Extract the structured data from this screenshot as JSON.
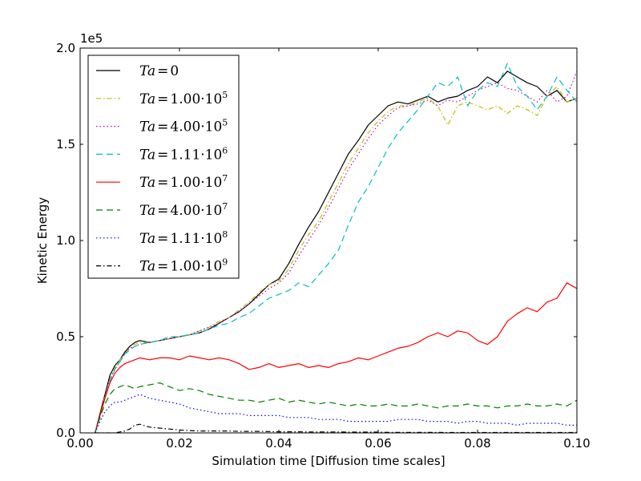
{
  "chart_data": {
    "type": "line",
    "xlabel": "Simulation time [Diffusion time scales]",
    "ylabel": "Kinetic Energy",
    "y_offset_text": "1e5",
    "xlim": [
      0.0,
      0.1
    ],
    "ylim": [
      0.0,
      2.0
    ],
    "xticks": [
      "0.00",
      "0.02",
      "0.04",
      "0.06",
      "0.08",
      "0.10"
    ],
    "yticks": [
      "0.0",
      "0.5",
      "1.0",
      "1.5",
      "2.0"
    ],
    "grid": false,
    "legend_position": "upper-left",
    "series": [
      {
        "name": "Ta = 0",
        "legend": {
          "base": "Ta",
          "eq": "=",
          "coef": "0",
          "sup": ""
        },
        "color": "#000000",
        "dash": "none",
        "x": [
          0.003,
          0.004,
          0.005,
          0.006,
          0.007,
          0.008,
          0.009,
          0.01,
          0.011,
          0.012,
          0.014,
          0.016,
          0.018,
          0.02,
          0.022,
          0.024,
          0.026,
          0.028,
          0.03,
          0.032,
          0.034,
          0.036,
          0.038,
          0.04,
          0.042,
          0.044,
          0.046,
          0.048,
          0.05,
          0.052,
          0.054,
          0.056,
          0.058,
          0.06,
          0.062,
          0.064,
          0.066,
          0.068,
          0.07,
          0.072,
          0.074,
          0.076,
          0.078,
          0.08,
          0.082,
          0.084,
          0.086,
          0.088,
          0.09,
          0.092,
          0.094,
          0.096,
          0.098,
          0.1
        ],
        "y": [
          0.0,
          0.1,
          0.2,
          0.3,
          0.35,
          0.38,
          0.42,
          0.45,
          0.47,
          0.48,
          0.47,
          0.48,
          0.49,
          0.5,
          0.51,
          0.52,
          0.54,
          0.57,
          0.6,
          0.63,
          0.67,
          0.72,
          0.77,
          0.8,
          0.88,
          0.98,
          1.07,
          1.15,
          1.25,
          1.35,
          1.45,
          1.52,
          1.6,
          1.65,
          1.7,
          1.72,
          1.71,
          1.73,
          1.75,
          1.72,
          1.74,
          1.75,
          1.78,
          1.8,
          1.85,
          1.82,
          1.88,
          1.85,
          1.82,
          1.8,
          1.75,
          1.78,
          1.72,
          1.74
        ]
      },
      {
        "name": "Ta = 1.00·10^5",
        "legend": {
          "base": "Ta",
          "eq": "=",
          "coef": "1.00·10",
          "sup": "5"
        },
        "color": "#bfbf00",
        "dash": "6 3 1.5 3",
        "x": [
          0.003,
          0.004,
          0.005,
          0.006,
          0.007,
          0.008,
          0.009,
          0.01,
          0.011,
          0.012,
          0.014,
          0.016,
          0.018,
          0.02,
          0.022,
          0.024,
          0.026,
          0.028,
          0.03,
          0.032,
          0.034,
          0.036,
          0.038,
          0.04,
          0.042,
          0.044,
          0.046,
          0.048,
          0.05,
          0.052,
          0.054,
          0.056,
          0.058,
          0.06,
          0.062,
          0.064,
          0.066,
          0.068,
          0.07,
          0.072,
          0.074,
          0.076,
          0.078,
          0.08,
          0.082,
          0.084,
          0.086,
          0.088,
          0.09,
          0.092,
          0.094,
          0.096,
          0.098,
          0.1
        ],
        "y": [
          0.0,
          0.09,
          0.19,
          0.28,
          0.34,
          0.38,
          0.41,
          0.44,
          0.46,
          0.47,
          0.47,
          0.48,
          0.49,
          0.5,
          0.51,
          0.53,
          0.55,
          0.58,
          0.6,
          0.64,
          0.68,
          0.73,
          0.77,
          0.79,
          0.85,
          0.95,
          1.03,
          1.1,
          1.2,
          1.3,
          1.4,
          1.48,
          1.56,
          1.62,
          1.67,
          1.7,
          1.7,
          1.72,
          1.74,
          1.7,
          1.6,
          1.7,
          1.72,
          1.7,
          1.68,
          1.7,
          1.66,
          1.7,
          1.68,
          1.65,
          1.75,
          1.8,
          1.72,
          1.74
        ]
      },
      {
        "name": "Ta = 4.00·10^5",
        "legend": {
          "base": "Ta",
          "eq": "=",
          "coef": "4.00·10",
          "sup": "5"
        },
        "color": "#bf00bf",
        "dash": "1.5 3",
        "x": [
          0.003,
          0.004,
          0.005,
          0.006,
          0.007,
          0.008,
          0.009,
          0.01,
          0.011,
          0.012,
          0.014,
          0.016,
          0.018,
          0.02,
          0.022,
          0.024,
          0.026,
          0.028,
          0.03,
          0.032,
          0.034,
          0.036,
          0.038,
          0.04,
          0.042,
          0.044,
          0.046,
          0.048,
          0.05,
          0.052,
          0.054,
          0.056,
          0.058,
          0.06,
          0.062,
          0.064,
          0.066,
          0.068,
          0.07,
          0.072,
          0.074,
          0.076,
          0.078,
          0.08,
          0.082,
          0.084,
          0.086,
          0.088,
          0.09,
          0.092,
          0.094,
          0.096,
          0.098,
          0.1
        ],
        "y": [
          0.0,
          0.09,
          0.18,
          0.28,
          0.33,
          0.37,
          0.41,
          0.44,
          0.45,
          0.46,
          0.47,
          0.48,
          0.49,
          0.5,
          0.51,
          0.53,
          0.55,
          0.57,
          0.6,
          0.63,
          0.67,
          0.71,
          0.75,
          0.78,
          0.83,
          0.92,
          1.0,
          1.08,
          1.17,
          1.27,
          1.37,
          1.45,
          1.53,
          1.6,
          1.65,
          1.69,
          1.7,
          1.71,
          1.73,
          1.7,
          1.73,
          1.72,
          1.75,
          1.78,
          1.8,
          1.82,
          1.79,
          1.78,
          1.75,
          1.72,
          1.78,
          1.72,
          1.75,
          1.88
        ]
      },
      {
        "name": "Ta = 1.11·10^6",
        "legend": {
          "base": "Ta",
          "eq": "=",
          "coef": "1.11·10",
          "sup": "6"
        },
        "color": "#00bfbf",
        "dash": "8 5",
        "x": [
          0.003,
          0.004,
          0.005,
          0.006,
          0.007,
          0.008,
          0.009,
          0.01,
          0.011,
          0.012,
          0.014,
          0.016,
          0.018,
          0.02,
          0.022,
          0.024,
          0.026,
          0.028,
          0.03,
          0.032,
          0.034,
          0.036,
          0.038,
          0.04,
          0.042,
          0.044,
          0.046,
          0.048,
          0.05,
          0.052,
          0.054,
          0.056,
          0.058,
          0.06,
          0.062,
          0.064,
          0.066,
          0.068,
          0.07,
          0.072,
          0.074,
          0.076,
          0.078,
          0.08,
          0.082,
          0.084,
          0.086,
          0.088,
          0.09,
          0.092,
          0.094,
          0.096,
          0.098,
          0.1
        ],
        "y": [
          0.0,
          0.09,
          0.18,
          0.27,
          0.33,
          0.37,
          0.41,
          0.43,
          0.45,
          0.46,
          0.47,
          0.48,
          0.5,
          0.5,
          0.51,
          0.52,
          0.54,
          0.56,
          0.57,
          0.6,
          0.62,
          0.66,
          0.7,
          0.72,
          0.74,
          0.78,
          0.76,
          0.82,
          0.88,
          0.95,
          1.08,
          1.2,
          1.28,
          1.38,
          1.48,
          1.56,
          1.62,
          1.68,
          1.75,
          1.82,
          1.8,
          1.85,
          1.7,
          1.78,
          1.82,
          1.8,
          1.92,
          1.8,
          1.75,
          1.68,
          1.75,
          1.85,
          1.78,
          1.72
        ]
      },
      {
        "name": "Ta = 1.00·10^7",
        "legend": {
          "base": "Ta",
          "eq": "=",
          "coef": "1.00·10",
          "sup": "7"
        },
        "color": "#ff0000",
        "dash": "none",
        "x": [
          0.003,
          0.004,
          0.005,
          0.006,
          0.007,
          0.008,
          0.009,
          0.01,
          0.011,
          0.012,
          0.014,
          0.016,
          0.018,
          0.02,
          0.022,
          0.024,
          0.026,
          0.028,
          0.03,
          0.032,
          0.034,
          0.036,
          0.038,
          0.04,
          0.042,
          0.044,
          0.046,
          0.048,
          0.05,
          0.052,
          0.054,
          0.056,
          0.058,
          0.06,
          0.062,
          0.064,
          0.066,
          0.068,
          0.07,
          0.072,
          0.074,
          0.076,
          0.078,
          0.08,
          0.082,
          0.084,
          0.086,
          0.088,
          0.09,
          0.092,
          0.094,
          0.096,
          0.098,
          0.1
        ],
        "y": [
          0.0,
          0.09,
          0.18,
          0.26,
          0.31,
          0.34,
          0.36,
          0.37,
          0.38,
          0.39,
          0.38,
          0.39,
          0.39,
          0.38,
          0.4,
          0.39,
          0.38,
          0.39,
          0.38,
          0.36,
          0.33,
          0.34,
          0.36,
          0.34,
          0.35,
          0.36,
          0.34,
          0.35,
          0.34,
          0.36,
          0.37,
          0.39,
          0.38,
          0.4,
          0.42,
          0.44,
          0.45,
          0.47,
          0.5,
          0.52,
          0.5,
          0.53,
          0.52,
          0.48,
          0.46,
          0.5,
          0.58,
          0.62,
          0.65,
          0.63,
          0.68,
          0.7,
          0.78,
          0.75
        ]
      },
      {
        "name": "Ta = 4.00·10^7",
        "legend": {
          "base": "Ta",
          "eq": "=",
          "coef": "4.00·10",
          "sup": "7"
        },
        "color": "#008000",
        "dash": "8 5",
        "x": [
          0.003,
          0.004,
          0.005,
          0.006,
          0.007,
          0.008,
          0.009,
          0.01,
          0.011,
          0.012,
          0.014,
          0.016,
          0.018,
          0.02,
          0.022,
          0.024,
          0.026,
          0.028,
          0.03,
          0.032,
          0.034,
          0.036,
          0.038,
          0.04,
          0.042,
          0.044,
          0.046,
          0.048,
          0.05,
          0.052,
          0.054,
          0.056,
          0.058,
          0.06,
          0.062,
          0.064,
          0.066,
          0.068,
          0.07,
          0.072,
          0.074,
          0.076,
          0.078,
          0.08,
          0.082,
          0.084,
          0.086,
          0.088,
          0.09,
          0.092,
          0.094,
          0.096,
          0.098,
          0.1
        ],
        "y": [
          0.0,
          0.08,
          0.15,
          0.2,
          0.23,
          0.24,
          0.25,
          0.24,
          0.23,
          0.24,
          0.25,
          0.26,
          0.24,
          0.22,
          0.23,
          0.22,
          0.2,
          0.19,
          0.18,
          0.17,
          0.17,
          0.16,
          0.17,
          0.18,
          0.16,
          0.17,
          0.16,
          0.15,
          0.16,
          0.15,
          0.14,
          0.15,
          0.14,
          0.14,
          0.15,
          0.14,
          0.14,
          0.15,
          0.14,
          0.13,
          0.14,
          0.14,
          0.15,
          0.14,
          0.14,
          0.13,
          0.14,
          0.14,
          0.15,
          0.14,
          0.14,
          0.15,
          0.14,
          0.17
        ]
      },
      {
        "name": "Ta = 1.11·10^8",
        "legend": {
          "base": "Ta",
          "eq": "=",
          "coef": "1.11·10",
          "sup": "8"
        },
        "color": "#0000ff",
        "dash": "1.5 3",
        "x": [
          0.003,
          0.004,
          0.005,
          0.006,
          0.007,
          0.008,
          0.009,
          0.01,
          0.011,
          0.012,
          0.014,
          0.016,
          0.018,
          0.02,
          0.022,
          0.024,
          0.026,
          0.028,
          0.03,
          0.032,
          0.034,
          0.036,
          0.038,
          0.04,
          0.042,
          0.044,
          0.046,
          0.048,
          0.05,
          0.052,
          0.054,
          0.056,
          0.058,
          0.06,
          0.062,
          0.064,
          0.066,
          0.068,
          0.07,
          0.072,
          0.074,
          0.076,
          0.078,
          0.08,
          0.082,
          0.084,
          0.086,
          0.088,
          0.09,
          0.092,
          0.094,
          0.096,
          0.098,
          0.1
        ],
        "y": [
          0.0,
          0.06,
          0.11,
          0.14,
          0.16,
          0.16,
          0.17,
          0.18,
          0.19,
          0.2,
          0.18,
          0.17,
          0.16,
          0.15,
          0.13,
          0.12,
          0.11,
          0.1,
          0.1,
          0.1,
          0.09,
          0.09,
          0.09,
          0.09,
          0.08,
          0.08,
          0.08,
          0.07,
          0.07,
          0.07,
          0.06,
          0.06,
          0.06,
          0.06,
          0.06,
          0.07,
          0.07,
          0.07,
          0.06,
          0.06,
          0.06,
          0.05,
          0.06,
          0.06,
          0.05,
          0.05,
          0.05,
          0.04,
          0.05,
          0.05,
          0.05,
          0.05,
          0.04,
          0.04
        ]
      },
      {
        "name": "Ta = 1.00·10^9",
        "legend": {
          "base": "Ta",
          "eq": "=",
          "coef": "1.00·10",
          "sup": "9"
        },
        "color": "#000000",
        "dash": "6 3 1.5 3",
        "x": [
          0.003,
          0.004,
          0.005,
          0.006,
          0.007,
          0.008,
          0.009,
          0.01,
          0.011,
          0.012,
          0.014,
          0.016,
          0.018,
          0.02,
          0.022,
          0.024,
          0.026,
          0.028,
          0.03,
          0.032,
          0.034,
          0.036,
          0.038,
          0.04,
          0.042,
          0.044,
          0.046,
          0.048,
          0.05,
          0.052,
          0.054,
          0.056,
          0.058,
          0.06,
          0.062,
          0.064,
          0.066,
          0.068,
          0.07,
          0.072,
          0.074,
          0.076,
          0.078,
          0.08,
          0.082,
          0.084,
          0.086,
          0.088,
          0.09,
          0.092,
          0.094,
          0.096,
          0.098,
          0.1
        ],
        "y": [
          0.0,
          0.0,
          0.0,
          0.0,
          0.0,
          0.005,
          0.01,
          0.02,
          0.04,
          0.045,
          0.03,
          0.025,
          0.02,
          0.015,
          0.012,
          0.01,
          0.01,
          0.01,
          0.01,
          0.008,
          0.008,
          0.008,
          0.007,
          0.006,
          0.006,
          0.006,
          0.005,
          0.005,
          0.005,
          0.005,
          0.004,
          0.004,
          0.004,
          0.004,
          0.003,
          0.003,
          0.003,
          0.003,
          0.003,
          0.003,
          0.002,
          0.002,
          0.002,
          0.002,
          0.002,
          0.002,
          0.002,
          0.002,
          0.002,
          0.002,
          0.002,
          0.002,
          0.002,
          0.002
        ]
      }
    ]
  }
}
